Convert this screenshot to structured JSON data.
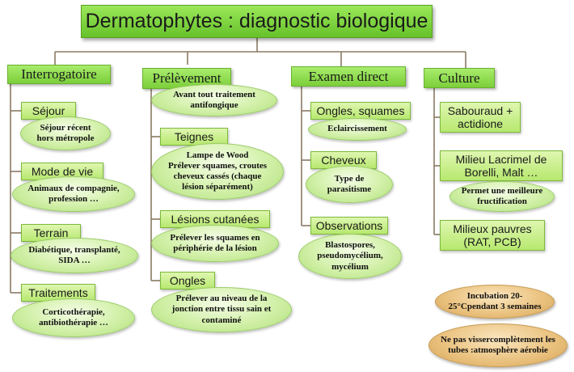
{
  "title": "Dermatophytes : diagnostic biologique",
  "columns": [
    {
      "header": "Interrogatoire",
      "items": [
        {
          "label": "Séjour",
          "detail": [
            "Séjour récent",
            "hors métropole"
          ]
        },
        {
          "label": "Mode de vie",
          "detail": [
            "Animaux de compagnie,",
            "profession …"
          ]
        },
        {
          "label": "Terrain",
          "detail": [
            "Diabétique, transplanté,",
            "SIDA …"
          ]
        },
        {
          "label": "Traitements",
          "detail": [
            "Corticothérapie,",
            "antibiothérapie …"
          ]
        }
      ]
    },
    {
      "header": "Prélèvement",
      "intro": [
        "Avant tout traitement",
        "antifongique"
      ],
      "items": [
        {
          "label": "Teignes",
          "detail": [
            "Lampe de Wood",
            "Prélever squames, croutes",
            "cheveux cassés (chaque",
            "lésion séparément)"
          ]
        },
        {
          "label": "Lésions cutanées",
          "detail": [
            "Prélever les squames en",
            "périphérie de la lésion"
          ]
        },
        {
          "label": "Ongles",
          "detail": [
            "Prélever au niveau de la",
            "jonction entre tissu sain et",
            "contaminé"
          ]
        }
      ]
    },
    {
      "header": "Examen direct",
      "items": [
        {
          "label": "Ongles, squames",
          "detail": [
            "Eclaircissement"
          ]
        },
        {
          "label": "Cheveux",
          "detail": [
            "Type de",
            "parasitisme"
          ]
        },
        {
          "label": "Observations",
          "detail": [
            "Blastospores,",
            "pseudomycélium,",
            "mycélium"
          ]
        }
      ]
    },
    {
      "header": "Culture",
      "items": [
        {
          "label": [
            "Sabouraud +",
            "actidione"
          ]
        },
        {
          "label": [
            "Milieu Lacrimel de",
            "Borelli, Malt …"
          ],
          "detail": [
            "Permet une meilleure",
            "fructification"
          ]
        },
        {
          "label": [
            "Milieux pauvres",
            "(RAT, PCB)"
          ]
        }
      ],
      "notes": [
        [
          "Incubation 20-25°C",
          "pendant 3 semaines"
        ],
        [
          "Ne pas visser",
          "complètement les tubes :",
          "atmosphère aérobie"
        ]
      ]
    }
  ]
}
